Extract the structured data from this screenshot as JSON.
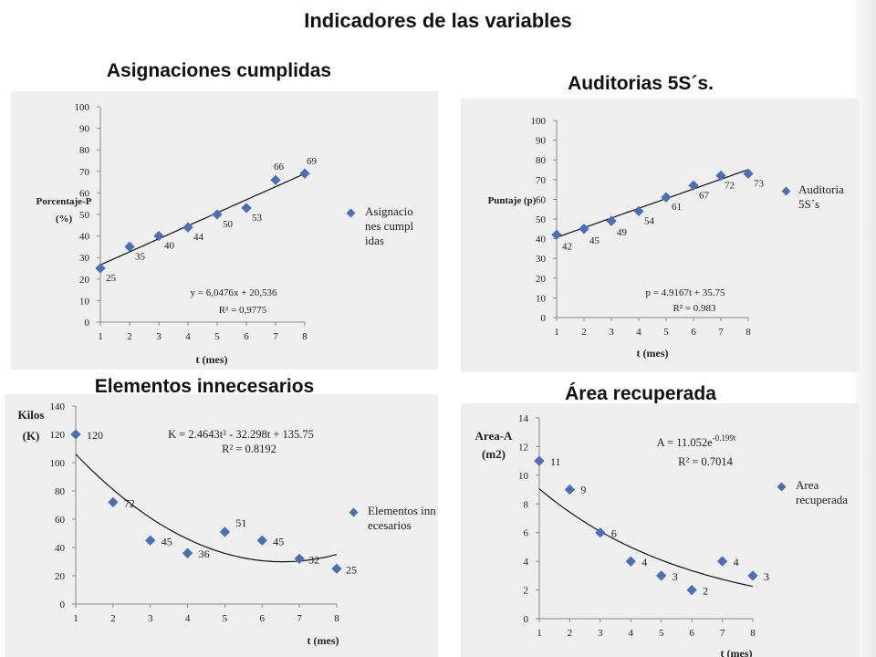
{
  "page": {
    "title": "Indicadores de las variables"
  },
  "chart_data": [
    {
      "type": "scatter",
      "title": "Asignaciones cumplidas",
      "xlabel": "t (mes)",
      "ylabel_lines": [
        "Porcentaje-P",
        "(%)"
      ],
      "x": [
        1,
        2,
        3,
        4,
        5,
        6,
        7,
        8
      ],
      "y": [
        25,
        35,
        40,
        44,
        50,
        53,
        66,
        69
      ],
      "xlim": [
        1,
        8
      ],
      "ylim": [
        0,
        100
      ],
      "yticks": [
        0,
        10,
        20,
        30,
        40,
        50,
        60,
        70,
        80,
        90,
        100
      ],
      "xticks": [
        1,
        2,
        3,
        4,
        5,
        6,
        7,
        8
      ],
      "series_name": "Asignaciones cumplidas",
      "legend_text": "Asignaciones cumplidas",
      "legend_position": "right",
      "trendline": {
        "type": "linear",
        "slope": 6.0476,
        "intercept": 20.536
      },
      "equation": "y = 6,0476x + 20,536",
      "r2": "R² = 0,9775",
      "marker_color": "#4a6fb5"
    },
    {
      "type": "scatter",
      "title": "Auditorias 5S´s.",
      "xlabel": "t (mes)",
      "ylabel_lines": [
        "Puntaje (p)"
      ],
      "x": [
        1,
        2,
        3,
        4,
        5,
        6,
        7,
        8
      ],
      "y": [
        42,
        45,
        49,
        54,
        61,
        67,
        72,
        73
      ],
      "xlim": [
        1,
        8
      ],
      "ylim": [
        0,
        100
      ],
      "yticks": [
        0,
        10,
        20,
        30,
        40,
        50,
        60,
        70,
        80,
        90,
        100
      ],
      "xticks": [
        1,
        2,
        3,
        4,
        5,
        6,
        7,
        8
      ],
      "series_name": "Auditoria 5S´s",
      "legend_text": "Auditoria 5S´s",
      "legend_position": "right",
      "trendline": {
        "type": "linear",
        "slope": 4.9167,
        "intercept": 35.75
      },
      "equation": "p = 4.9167t + 35.75",
      "r2": "R² = 0.983",
      "marker_color": "#4a6fb5"
    },
    {
      "type": "scatter",
      "title": "Elementos innecesarios",
      "xlabel": "t (mes)",
      "ylabel_lines": [
        "Kilos",
        "(K)"
      ],
      "x": [
        1,
        2,
        3,
        4,
        5,
        6,
        7,
        8
      ],
      "y": [
        120,
        72,
        45,
        36,
        51,
        45,
        32,
        25
      ],
      "xlim": [
        1,
        8
      ],
      "ylim": [
        0,
        140
      ],
      "yticks": [
        0,
        20,
        40,
        60,
        80,
        100,
        120,
        140
      ],
      "xticks": [
        1,
        2,
        3,
        4,
        5,
        6,
        7,
        8
      ],
      "series_name": "Elementos innecesarios",
      "legend_text": "Elementos innecesarios",
      "legend_position": "right",
      "trendline": {
        "type": "polynomial",
        "a": 2.4643,
        "b": -32.298,
        "c": 135.75
      },
      "equation": "K = 2.4643t² - 32.298t + 135.75",
      "r2": "R² = 0.8192",
      "marker_color": "#4a6fb5"
    },
    {
      "type": "scatter",
      "title": "Área recuperada",
      "xlabel": "t (mes)",
      "ylabel_lines": [
        "Area-A",
        "(m2)"
      ],
      "x": [
        1,
        2,
        3,
        4,
        5,
        6,
        7,
        8
      ],
      "y": [
        11,
        9,
        6,
        4,
        3,
        2,
        4,
        3
      ],
      "xlim": [
        1,
        8
      ],
      "ylim": [
        0,
        14
      ],
      "yticks": [
        0,
        2,
        4,
        6,
        8,
        10,
        12,
        14
      ],
      "xticks": [
        1,
        2,
        3,
        4,
        5,
        6,
        7,
        8
      ],
      "series_name": "Area recuperada",
      "legend_text": "Area recuperada",
      "legend_position": "right",
      "trendline": {
        "type": "exponential",
        "a": 11.052,
        "b": -0.199
      },
      "equation_base": "A = 11.052e",
      "equation_exp": "-0.199t",
      "r2": "R² = 0.7014",
      "marker_color": "#4a6fb5"
    }
  ]
}
